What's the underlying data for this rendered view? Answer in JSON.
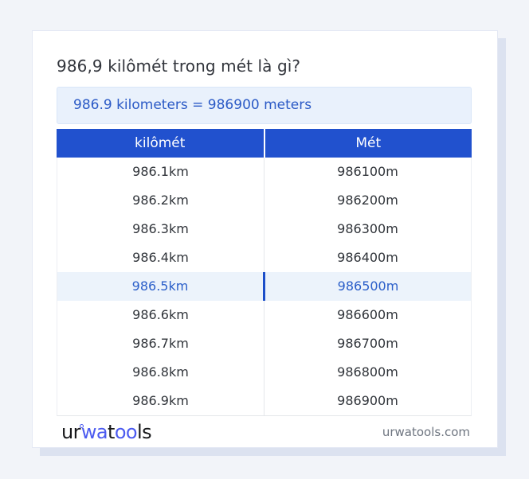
{
  "header": {
    "title": "986,9 kilômét trong mét là gì?"
  },
  "result_box": {
    "text": "986.9 kilometers = 986900 meters"
  },
  "table": {
    "columns": [
      "kilômét",
      "Mét"
    ],
    "rows": [
      {
        "km": "986.1km",
        "m": "986100m",
        "highlighted": false
      },
      {
        "km": "986.2km",
        "m": "986200m",
        "highlighted": false
      },
      {
        "km": "986.3km",
        "m": "986300m",
        "highlighted": false
      },
      {
        "km": "986.4km",
        "m": "986400m",
        "highlighted": false
      },
      {
        "km": "986.5km",
        "m": "986500m",
        "highlighted": true
      },
      {
        "km": "986.6km",
        "m": "986600m",
        "highlighted": false
      },
      {
        "km": "986.7km",
        "m": "986700m",
        "highlighted": false
      },
      {
        "km": "986.8km",
        "m": "986800m",
        "highlighted": false
      },
      {
        "km": "986.9km",
        "m": "986900m",
        "highlighted": false
      }
    ]
  },
  "footer": {
    "logo": {
      "part_ur": "ur",
      "part_wa": "wa",
      "part_t": "t",
      "part_oo": "oo",
      "part_ls": "ls"
    },
    "site": "urwatools.com"
  },
  "colors": {
    "accent_blue": "#2151ce",
    "result_text_blue": "#2b5ac6",
    "highlight_bg": "#ecf3fb",
    "highlight_text": "#2a5ec9",
    "highlight_divider": "#1c4ec9",
    "logo_blue": "#4c5bf0",
    "page_bg": "#f2f4f9",
    "card_shadow": "#dce2f0",
    "card_border": "#e4e8f4",
    "divider": "#e4e6ea",
    "body_text": "#30343a",
    "footer_gray": "#6e7580"
  }
}
